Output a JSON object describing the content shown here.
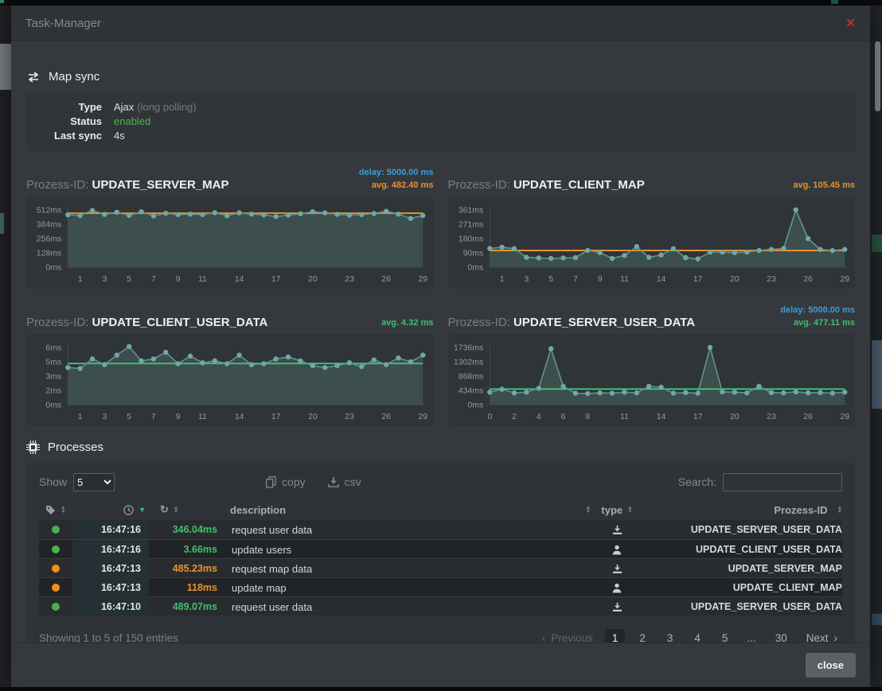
{
  "window": {
    "title": "Task-Manager",
    "close_icon": "✕",
    "close_button": "close"
  },
  "colors": {
    "blue": "#3d9bd9",
    "orange": "#e8912d",
    "green": "#3fbf6f",
    "red": "#b8342c",
    "dot_green": "#4caf50",
    "dot_orange": "#ef9216",
    "chart_area": "#3c4e4d",
    "chart_line": "#63938f",
    "chart_dot": "#6fa8a4"
  },
  "map_sync": {
    "heading": "Map sync",
    "rows": [
      {
        "label": "Type",
        "value": "Ajax",
        "suffix": "(long polling)"
      },
      {
        "label": "Status",
        "value": "enabled"
      },
      {
        "label": "Last sync",
        "value": "4s"
      }
    ]
  },
  "chart_prefix": "Prozess-ID:",
  "chart_data": [
    {
      "type": "area",
      "name": "UPDATE_SERVER_MAP",
      "delay_label": "delay: 5000.00 ms",
      "avg_label": "avg. 482.40 ms",
      "avg_value": 482.4,
      "avg_color": "#e8912d",
      "delay_ms": 5000,
      "ylabel_ticks": [
        "512ms",
        "384ms",
        "256ms",
        "128ms",
        "0ms"
      ],
      "y_max": 512,
      "x_labels": [
        1,
        3,
        5,
        7,
        9,
        11,
        14,
        17,
        20,
        23,
        26,
        29
      ],
      "values": [
        468,
        462,
        508,
        472,
        492,
        464,
        496,
        458,
        482,
        470,
        474,
        470,
        487,
        460,
        486,
        474,
        468,
        452,
        466,
        478,
        496,
        486,
        472,
        466,
        470,
        480,
        500,
        474,
        436,
        462
      ]
    },
    {
      "type": "area",
      "name": "UPDATE_CLIENT_MAP",
      "delay_label": null,
      "avg_label": "avg. 105.45 ms",
      "avg_value": 105.45,
      "avg_color": "#e8912d",
      "ylabel_ticks": [
        "361ms",
        "271ms",
        "180ms",
        "90ms",
        "0ms"
      ],
      "y_max": 361,
      "x_labels": [
        1,
        3,
        5,
        7,
        9,
        11,
        14,
        17,
        20,
        23,
        26,
        29
      ],
      "values": [
        118,
        126,
        117,
        62,
        58,
        55,
        58,
        60,
        106,
        92,
        55,
        74,
        130,
        62,
        77,
        117,
        60,
        52,
        95,
        95,
        92,
        95,
        105,
        112,
        118,
        361,
        180,
        112,
        105,
        112
      ]
    },
    {
      "type": "area",
      "name": "UPDATE_CLIENT_USER_DATA",
      "delay_label": null,
      "avg_label": "avg. 4.32 ms",
      "avg_value": 4.32,
      "avg_color": "#3fbf6f",
      "ylabel_ticks": [
        "6ms",
        "5ms",
        "3ms",
        "2ms",
        "0ms"
      ],
      "y_max": 6,
      "x_labels": [
        1,
        3,
        5,
        7,
        9,
        11,
        14,
        17,
        20,
        23,
        26,
        29
      ],
      "values": [
        3.9,
        3.8,
        4.8,
        4.2,
        5.2,
        6.1,
        4.6,
        4.8,
        5.5,
        4.3,
        5.1,
        4.4,
        4.6,
        4.3,
        5.2,
        4.2,
        4.3,
        4.8,
        5.0,
        4.6,
        4.1,
        3.9,
        4.1,
        4.4,
        4.0,
        4.7,
        4.2,
        4.9,
        4.5,
        5.2
      ]
    },
    {
      "type": "area",
      "name": "UPDATE_SERVER_USER_DATA",
      "delay_label": "delay: 5000.00 ms",
      "avg_label": "avg. 477.11 ms",
      "avg_value": 477.11,
      "avg_color": "#3fbf6f",
      "delay_ms": 5000,
      "ylabel_ticks": [
        "1736ms",
        "1302ms",
        "868ms",
        "434ms",
        "0ms"
      ],
      "y_max": 1736,
      "x_labels": [
        0,
        2,
        4,
        6,
        8,
        11,
        14,
        17,
        20,
        23,
        26,
        29
      ],
      "values": [
        380,
        470,
        360,
        380,
        500,
        1700,
        560,
        350,
        340,
        360,
        350,
        380,
        360,
        560,
        530,
        350,
        370,
        350,
        1736,
        390,
        380,
        360,
        560,
        370,
        360,
        390,
        360,
        370,
        350,
        380
      ]
    }
  ],
  "processes": {
    "heading": "Processes",
    "show_label": "Show",
    "show_value": "5",
    "copy_label": "copy",
    "csv_label": "csv",
    "search_label": "Search:",
    "search_value": "",
    "headers": {
      "description": "description",
      "type": "type",
      "prozess_id": "Prozess-ID"
    },
    "rows": [
      {
        "status": "green",
        "time": "16:47:16",
        "duration": "346.04ms",
        "duration_color": "green",
        "description": "request user data",
        "type": "server",
        "prozess_id": "UPDATE_SERVER_USER_DATA"
      },
      {
        "status": "green",
        "time": "16:47:16",
        "duration": "3.66ms",
        "duration_color": "green",
        "description": "update users",
        "type": "client",
        "prozess_id": "UPDATE_CLIENT_USER_DATA"
      },
      {
        "status": "orange",
        "time": "16:47:13",
        "duration": "485.23ms",
        "duration_color": "orange",
        "description": "request map data",
        "type": "server",
        "prozess_id": "UPDATE_SERVER_MAP"
      },
      {
        "status": "orange",
        "time": "16:47:13",
        "duration": "118ms",
        "duration_color": "orange",
        "description": "update map",
        "type": "client",
        "prozess_id": "UPDATE_CLIENT_MAP"
      },
      {
        "status": "green",
        "time": "16:47:10",
        "duration": "489.07ms",
        "duration_color": "green",
        "description": "request user data",
        "type": "server",
        "prozess_id": "UPDATE_SERVER_USER_DATA"
      }
    ],
    "footer_text": "Showing 1 to 5 of 150 entries",
    "pagination": {
      "previous": "Previous",
      "next": "Next",
      "prev_chevron": "‹",
      "next_chevron": "›",
      "pages": [
        "1",
        "2",
        "3",
        "4",
        "5",
        "...",
        "30"
      ],
      "active_page": "1"
    }
  }
}
